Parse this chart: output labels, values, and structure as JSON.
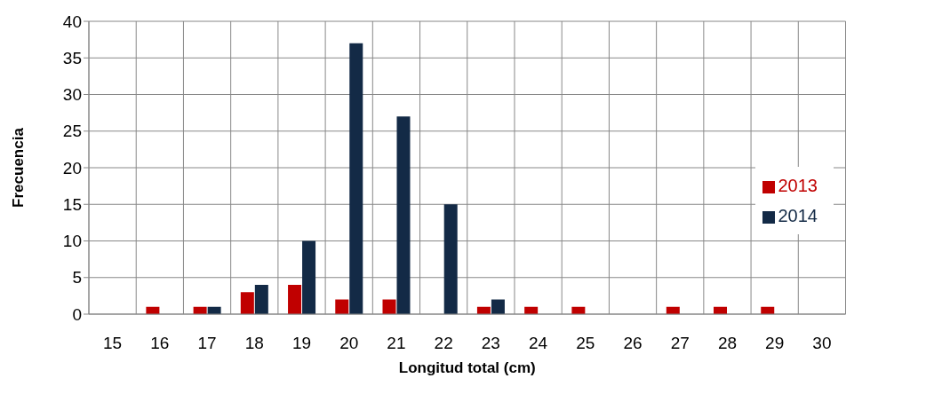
{
  "chart_data": {
    "type": "bar",
    "xlabel": "Longitud total (cm)",
    "ylabel": "Frecuencia",
    "categories": [
      "15",
      "16",
      "17",
      "18",
      "19",
      "20",
      "21",
      "22",
      "23",
      "24",
      "25",
      "26",
      "27",
      "28",
      "29",
      "30"
    ],
    "series": [
      {
        "name": "2013",
        "color": "#c00000",
        "values": [
          0,
          1,
          1,
          3,
          4,
          2,
          2,
          0,
          1,
          1,
          1,
          0,
          1,
          1,
          1,
          0
        ]
      },
      {
        "name": "2014",
        "color": "#132a46",
        "values": [
          0,
          0,
          1,
          4,
          10,
          37,
          27,
          15,
          2,
          0,
          0,
          0,
          0,
          0,
          0,
          0
        ]
      }
    ],
    "ylim": [
      0,
      40
    ],
    "yticks": [
      0,
      5,
      10,
      15,
      20,
      25,
      30,
      35,
      40
    ],
    "grid": true,
    "legend": "right"
  }
}
